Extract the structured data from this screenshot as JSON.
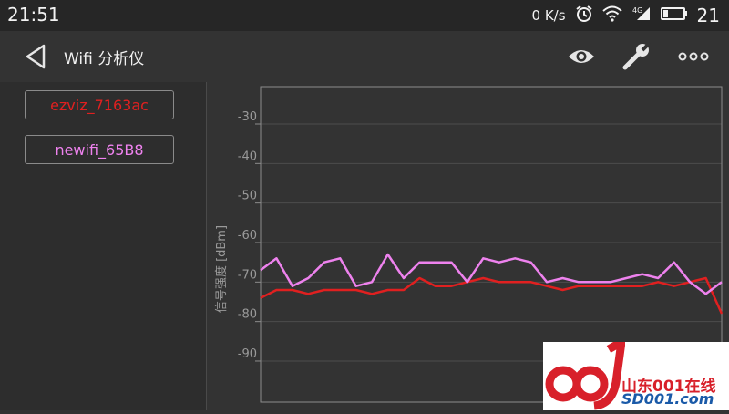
{
  "status_bar": {
    "time": "21:51",
    "net_speed": "0 K/s",
    "network": "4G",
    "battery": "21"
  },
  "app_bar": {
    "title": "Wifi 分析仪",
    "icons": [
      "back-icon",
      "eye-icon",
      "wrench-icon",
      "more-icon"
    ]
  },
  "networks": [
    {
      "label": "ezviz_7163ac",
      "color": "#e02020"
    },
    {
      "label": "newifi_65B8",
      "color": "#ee82ee"
    }
  ],
  "chart_data": {
    "type": "line",
    "ylabel": "信号强度 [dBm]",
    "yticks": [
      "-30",
      "-40",
      "-50",
      "-60",
      "-70",
      "-80",
      "-90"
    ],
    "ylim": [
      -100,
      -20
    ],
    "grid": true,
    "series": [
      {
        "name": "ezviz_7163ac",
        "color": "#e02020",
        "values": [
          -74,
          -72,
          -72,
          -73,
          -72,
          -72,
          -72,
          -73,
          -72,
          -72,
          -69,
          -71,
          -71,
          -70,
          -69,
          -70,
          -70,
          -70,
          -71,
          -72,
          -71,
          -71,
          -71,
          -71,
          -71,
          -70,
          -71,
          -70,
          -69,
          -78
        ]
      },
      {
        "name": "newifi_65B8",
        "color": "#ee82ee",
        "values": [
          -67,
          -64,
          -71,
          -69,
          -65,
          -64,
          -71,
          -70,
          -63,
          -69,
          -65,
          -65,
          -65,
          -70,
          -64,
          -65,
          -64,
          -65,
          -70,
          -69,
          -70,
          -70,
          -70,
          -69,
          -68,
          -69,
          -65,
          -70,
          -73,
          -70
        ]
      }
    ]
  },
  "watermark": {
    "text_cn": "山东001在线",
    "text_en": "SD001.com"
  }
}
